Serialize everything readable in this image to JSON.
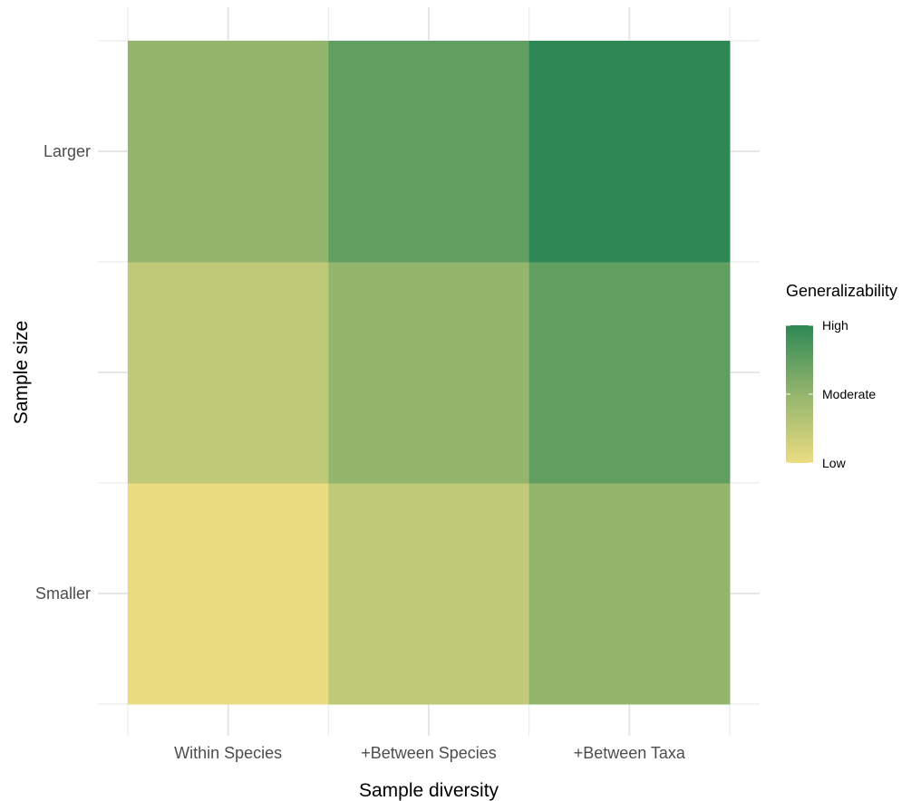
{
  "chart_data": {
    "type": "heatmap",
    "title": "",
    "xlabel": "Sample diversity",
    "ylabel": "Sample size",
    "x_categories": [
      "Within Species",
      "+Between Species",
      "+Between Taxa"
    ],
    "y_rows": [
      "Smaller",
      "",
      "Larger"
    ],
    "y_tick_labels": [
      {
        "row": 0,
        "label": "Smaller"
      },
      {
        "row": 2,
        "label": "Larger"
      }
    ],
    "values": [
      [
        1,
        2,
        3
      ],
      [
        2,
        3,
        4
      ],
      [
        3,
        4,
        5
      ]
    ],
    "value_range": [
      1,
      5
    ],
    "grid": true,
    "color_scale": {
      "low": "#ebdc81",
      "mid": "#93b56c",
      "high": "#2e8855"
    },
    "legend": {
      "title": "Generalizability",
      "position": "right",
      "labels": [
        {
          "label": "High",
          "value": 5
        },
        {
          "label": "Moderate",
          "value": 3
        },
        {
          "label": "Low",
          "value": 1
        }
      ]
    }
  }
}
